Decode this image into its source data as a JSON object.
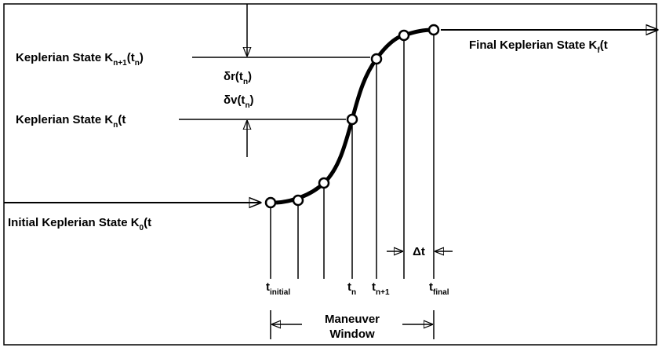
{
  "labels": [
    {
      "parts": [
        {
          "text": "Keplerian State K"
        },
        {
          "text": "n+1",
          "sub": true
        },
        {
          "text": "(t"
        },
        {
          "text": "n",
          "sub": true
        },
        {
          "text": ")"
        }
      ]
    },
    {
      "parts": [
        {
          "text": "Keplerian State K"
        },
        {
          "text": "n",
          "sub": true
        },
        {
          "text": "(t"
        }
      ]
    },
    {
      "parts": [
        {
          "text": "Initial Keplerian State K"
        },
        {
          "text": "0",
          "sub": true
        },
        {
          "text": "(t"
        }
      ]
    },
    {
      "parts": [
        {
          "text": "Final Keplerian State K"
        },
        {
          "text": "f",
          "sub": true
        },
        {
          "text": "(t"
        }
      ]
    },
    {
      "parts": [
        {
          "text": "δr(t"
        },
        {
          "text": "n",
          "sub": true
        },
        {
          "text": ")"
        }
      ]
    },
    {
      "parts": [
        {
          "text": "δv(t"
        },
        {
          "text": "n",
          "sub": true
        },
        {
          "text": ")"
        }
      ]
    }
  ],
  "times": [
    {
      "parts": [
        {
          "text": "t"
        },
        {
          "text": "initial",
          "sub": true
        }
      ]
    },
    {
      "parts": [
        {
          "text": "t"
        },
        {
          "text": "n",
          "sub": true
        }
      ]
    },
    {
      "parts": [
        {
          "text": "t"
        },
        {
          "text": "n+1",
          "sub": true
        }
      ]
    },
    {
      "parts": [
        {
          "text": "t"
        },
        {
          "text": "final",
          "sub": true
        }
      ]
    }
  ],
  "delta": "Δt",
  "window": [
    "Maneuver",
    "Window"
  ]
}
